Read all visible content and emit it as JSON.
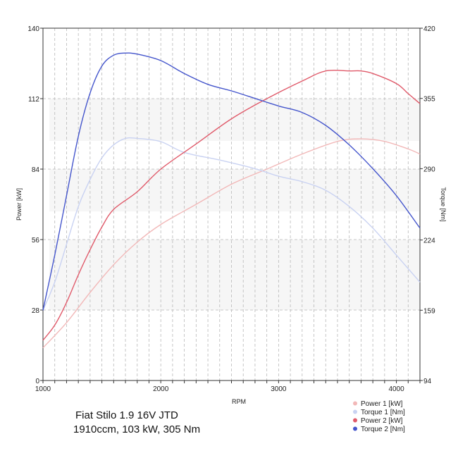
{
  "chart_data": {
    "type": "line",
    "title": "",
    "xlabel": "RPM",
    "ylabel_left": "Power [kW]",
    "ylabel_right": "Torque [Nm]",
    "xlim": [
      1000,
      4200
    ],
    "ylim_left": [
      0,
      140
    ],
    "ylim_right": [
      94,
      420
    ],
    "x_ticks": [
      1000,
      2000,
      3000,
      4000
    ],
    "y_ticks_left": [
      0,
      28,
      56,
      84,
      112,
      140
    ],
    "y_ticks_right": [
      94,
      159,
      224,
      290,
      355,
      420
    ],
    "grid": true,
    "legend_position": "bottom-right",
    "series": [
      {
        "name": "Power 1 [kW]",
        "axis": "left",
        "color": "#f2b8b8",
        "x": [
          1000,
          1200,
          1400,
          1600,
          1800,
          2000,
          2300,
          2600,
          2900,
          3200,
          3500,
          3700,
          3900,
          4100,
          4200
        ],
        "y": [
          13,
          23,
          35,
          46,
          55,
          62,
          70,
          78,
          84,
          90,
          95,
          96,
          95,
          92,
          90
        ]
      },
      {
        "name": "Torque 1 [Nm]",
        "axis": "right",
        "color": "#c9d2f2",
        "x": [
          1000,
          1100,
          1200,
          1300,
          1400,
          1500,
          1600,
          1700,
          1800,
          2000,
          2200,
          2500,
          2800,
          3000,
          3200,
          3400,
          3600,
          3800,
          4000,
          4200
        ],
        "y": [
          159,
          185,
          220,
          255,
          280,
          300,
          312,
          318,
          318,
          315,
          305,
          298,
          290,
          283,
          278,
          270,
          255,
          235,
          210,
          185
        ]
      },
      {
        "name": "Power 2 [kW]",
        "axis": "left",
        "color": "#e05a6a",
        "x": [
          1000,
          1100,
          1200,
          1300,
          1400,
          1500,
          1600,
          1800,
          2000,
          2300,
          2600,
          2900,
          3200,
          3400,
          3600,
          3700,
          3800,
          4000,
          4100,
          4200
        ],
        "y": [
          16,
          22,
          31,
          42,
          52,
          61,
          68,
          75,
          84,
          94,
          104,
          112,
          119,
          123,
          123,
          123,
          122,
          118,
          114,
          110
        ]
      },
      {
        "name": "Torque 2 [Nm]",
        "axis": "right",
        "color": "#4455cc",
        "x": [
          1000,
          1100,
          1200,
          1300,
          1400,
          1500,
          1600,
          1700,
          1800,
          2000,
          2200,
          2400,
          2600,
          2800,
          3000,
          3200,
          3400,
          3600,
          3800,
          4000,
          4200
        ],
        "y": [
          159,
          210,
          265,
          320,
          360,
          385,
          395,
          397,
          396,
          390,
          378,
          368,
          362,
          355,
          348,
          342,
          330,
          312,
          290,
          265,
          235
        ]
      }
    ]
  },
  "caption": {
    "line1": "Fiat Stilo 1.9 16V JTD",
    "line2": "1910ccm, 103 kW, 305 Nm"
  }
}
